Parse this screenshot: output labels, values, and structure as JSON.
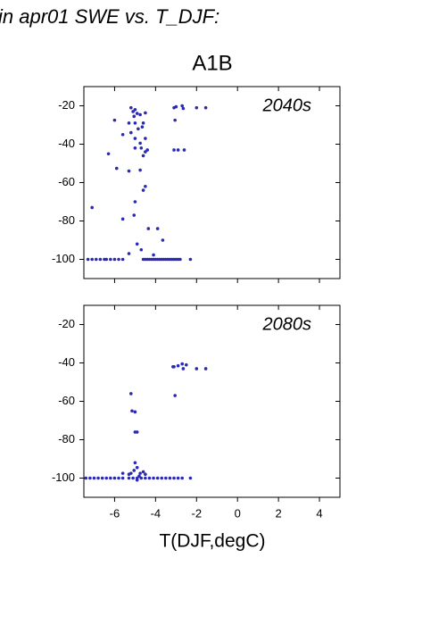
{
  "title": "in apr01 SWE vs. T_DJF:",
  "subtitle": "A1B",
  "chart_data": [
    {
      "type": "scatter",
      "annotation": "2040s",
      "color": "#2a2ab4",
      "xlim": [
        -7.5,
        5
      ],
      "ylim": [
        -110,
        -10
      ],
      "xticks": [
        -6,
        -4,
        -2,
        0,
        2,
        4
      ],
      "yticks": [
        -20,
        -40,
        -60,
        -80,
        -100
      ],
      "x": [
        -7.1,
        -6.0,
        -5.6,
        -6.3,
        -5.9,
        -5.6,
        -5.2,
        -5.1,
        -5.0,
        -4.9,
        -5.05,
        -4.75,
        -4.5,
        -5.3,
        -5.0,
        -4.6,
        -5.2,
        -4.85,
        -4.65,
        -5.0,
        -4.75,
        -4.5,
        -5.0,
        -4.7,
        -4.5,
        -4.4,
        -4.6,
        -5.3,
        -4.75,
        -4.5,
        -4.6,
        -5.0,
        -5.05,
        -4.35,
        -3.9,
        -3.65,
        -4.9,
        -4.7,
        -5.3,
        -4.1,
        -3.1,
        -3.0,
        -2.7,
        -2.65,
        -2.0,
        -1.55,
        -3.05,
        -3.1,
        -2.9,
        -2.6,
        -7.3,
        -7.1,
        -6.9,
        -6.7,
        -6.5,
        -6.4,
        -6.2,
        -6.0,
        -5.8,
        -5.6,
        -4.6,
        -4.5,
        -4.4,
        -4.3,
        -4.2,
        -4.1,
        -4.0,
        -3.9,
        -3.8,
        -3.7,
        -3.6,
        -3.5,
        -3.4,
        -3.3,
        -3.2,
        -3.1,
        -3.0,
        -2.9,
        -2.8,
        -2.3
      ],
      "values": [
        -73,
        -27.5,
        -35,
        -45,
        -52.6,
        -79,
        -21,
        -23,
        -22,
        -24,
        -25.5,
        -24.6,
        -23.7,
        -29,
        -29,
        -29,
        -34,
        -32,
        -31,
        -37,
        -39.5,
        -37,
        -42,
        -42,
        -44,
        -43,
        -46,
        -54,
        -53.5,
        -62,
        -64,
        -70,
        -77,
        -84,
        -84,
        -90,
        -92,
        -95,
        -97,
        -97.7,
        -21,
        -20.5,
        -20,
        -21.4,
        -21,
        -21,
        -27.5,
        -43,
        -43,
        -43,
        -100,
        -100,
        -100,
        -100,
        -100,
        -100,
        -100,
        -100,
        -100,
        -100,
        -100,
        -100,
        -100,
        -100,
        -100,
        -100,
        -100,
        -100,
        -100,
        -100,
        -100,
        -100,
        -100,
        -100,
        -100,
        -100,
        -100,
        -100,
        -100,
        -100
      ]
    },
    {
      "type": "scatter",
      "annotation": "2080s",
      "color": "#2a2ab4",
      "xlabel": "T(DJF,degC)",
      "xlim": [
        -7.5,
        5
      ],
      "ylim": [
        -110,
        -10
      ],
      "xticks": [
        -6,
        -4,
        -2,
        0,
        2,
        4
      ],
      "yticks": [
        -20,
        -40,
        -60,
        -80,
        -100
      ],
      "x": [
        -5.6,
        -5.2,
        -5.15,
        -5.0,
        -5.0,
        -4.9,
        -5.0,
        -4.9,
        -5.05,
        -5.2,
        -4.75,
        -4.6,
        -4.5,
        -4.8,
        -5.3,
        -4.9,
        -3.1,
        -2.9,
        -2.7,
        -2.65,
        -2.5,
        -2.0,
        -1.55,
        -3.05,
        -3.15,
        -7.4,
        -7.2,
        -7.0,
        -6.8,
        -6.6,
        -6.4,
        -6.2,
        -6.0,
        -5.8,
        -5.6,
        -5.3,
        -5.1,
        -4.9,
        -4.7,
        -4.5,
        -4.3,
        -4.1,
        -3.9,
        -3.7,
        -3.5,
        -3.3,
        -3.1,
        -2.9,
        -2.7,
        -2.3
      ],
      "values": [
        -97.5,
        -56,
        -65,
        -65.5,
        -76,
        -76,
        -92,
        -94.5,
        -96,
        -97.5,
        -97.5,
        -96.7,
        -98,
        -99,
        -98,
        -101,
        -42,
        -41.5,
        -40.5,
        -43,
        -41,
        -43,
        -43,
        -57,
        -42,
        -100,
        -100,
        -100,
        -100,
        -100,
        -100,
        -100,
        -100,
        -100,
        -100,
        -100,
        -100,
        -100,
        -100,
        -100,
        -100,
        -100,
        -100,
        -100,
        -100,
        -100,
        -100,
        -100,
        -100,
        -100
      ]
    }
  ]
}
